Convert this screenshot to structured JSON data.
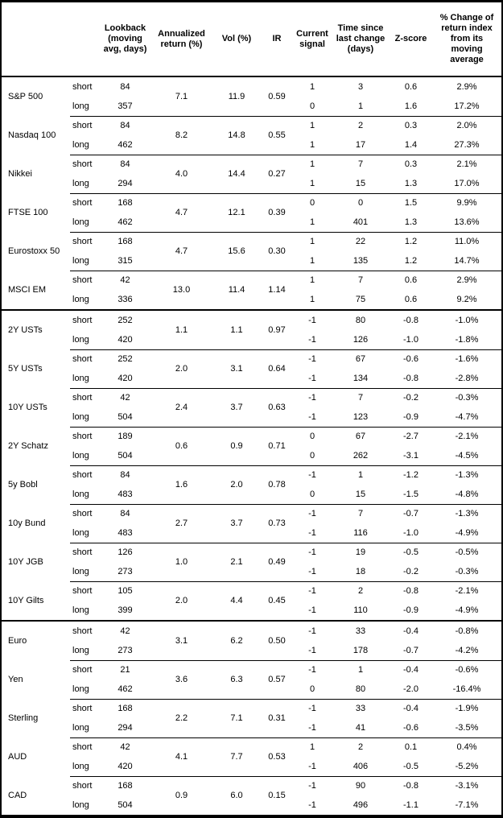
{
  "colors": {
    "border": "#000000",
    "text": "#000000",
    "background": "#ffffff"
  },
  "table": {
    "headers": {
      "name": "",
      "leg": "",
      "lookback": "Lookback (moving avg, days)",
      "annualized_return": "Annualized return (%)",
      "vol": "Vol (%)",
      "ir": "IR",
      "current_signal": "Current signal",
      "time_since": "Time since last change (days)",
      "z_score": "Z-score",
      "pct_change": "% Change of return index from its moving average"
    },
    "leg_labels": {
      "short": "short",
      "long": "long"
    },
    "sections": [
      {
        "instruments": [
          {
            "name": "S&P 500",
            "annualized_return": "7.1",
            "vol": "11.9",
            "ir": "0.59",
            "rows": [
              {
                "leg": "short",
                "lookback": "84",
                "signal": "1",
                "time": "3",
                "z": "0.6",
                "pct": "2.9%"
              },
              {
                "leg": "long",
                "lookback": "357",
                "signal": "0",
                "time": "1",
                "z": "1.6",
                "pct": "17.2%"
              }
            ]
          },
          {
            "name": "Nasdaq 100",
            "annualized_return": "8.2",
            "vol": "14.8",
            "ir": "0.55",
            "rows": [
              {
                "leg": "short",
                "lookback": "84",
                "signal": "1",
                "time": "2",
                "z": "0.3",
                "pct": "2.0%"
              },
              {
                "leg": "long",
                "lookback": "462",
                "signal": "1",
                "time": "17",
                "z": "1.4",
                "pct": "27.3%"
              }
            ]
          },
          {
            "name": "Nikkei",
            "annualized_return": "4.0",
            "vol": "14.4",
            "ir": "0.27",
            "rows": [
              {
                "leg": "short",
                "lookback": "84",
                "signal": "1",
                "time": "7",
                "z": "0.3",
                "pct": "2.1%"
              },
              {
                "leg": "long",
                "lookback": "294",
                "signal": "1",
                "time": "15",
                "z": "1.3",
                "pct": "17.0%"
              }
            ]
          },
          {
            "name": "FTSE 100",
            "annualized_return": "4.7",
            "vol": "12.1",
            "ir": "0.39",
            "rows": [
              {
                "leg": "short",
                "lookback": "168",
                "signal": "0",
                "time": "0",
                "z": "1.5",
                "pct": "9.9%"
              },
              {
                "leg": "long",
                "lookback": "462",
                "signal": "1",
                "time": "401",
                "z": "1.3",
                "pct": "13.6%"
              }
            ]
          },
          {
            "name": "Eurostoxx 50",
            "annualized_return": "4.7",
            "vol": "15.6",
            "ir": "0.30",
            "rows": [
              {
                "leg": "short",
                "lookback": "168",
                "signal": "1",
                "time": "22",
                "z": "1.2",
                "pct": "11.0%"
              },
              {
                "leg": "long",
                "lookback": "315",
                "signal": "1",
                "time": "135",
                "z": "1.2",
                "pct": "14.7%"
              }
            ]
          },
          {
            "name": "MSCI EM",
            "annualized_return": "13.0",
            "vol": "11.4",
            "ir": "1.14",
            "rows": [
              {
                "leg": "short",
                "lookback": "42",
                "signal": "1",
                "time": "7",
                "z": "0.6",
                "pct": "2.9%"
              },
              {
                "leg": "long",
                "lookback": "336",
                "signal": "1",
                "time": "75",
                "z": "0.6",
                "pct": "9.2%"
              }
            ]
          }
        ]
      },
      {
        "instruments": [
          {
            "name": "2Y USTs",
            "annualized_return": "1.1",
            "vol": "1.1",
            "ir": "0.97",
            "rows": [
              {
                "leg": "short",
                "lookback": "252",
                "signal": "-1",
                "time": "80",
                "z": "-0.8",
                "pct": "-1.0%"
              },
              {
                "leg": "long",
                "lookback": "420",
                "signal": "-1",
                "time": "126",
                "z": "-1.0",
                "pct": "-1.8%"
              }
            ]
          },
          {
            "name": "5Y USTs",
            "annualized_return": "2.0",
            "vol": "3.1",
            "ir": "0.64",
            "rows": [
              {
                "leg": "short",
                "lookback": "252",
                "signal": "-1",
                "time": "67",
                "z": "-0.6",
                "pct": "-1.6%"
              },
              {
                "leg": "long",
                "lookback": "420",
                "signal": "-1",
                "time": "134",
                "z": "-0.8",
                "pct": "-2.8%"
              }
            ]
          },
          {
            "name": "10Y USTs",
            "annualized_return": "2.4",
            "vol": "3.7",
            "ir": "0.63",
            "rows": [
              {
                "leg": "short",
                "lookback": "42",
                "signal": "-1",
                "time": "7",
                "z": "-0.2",
                "pct": "-0.3%"
              },
              {
                "leg": "long",
                "lookback": "504",
                "signal": "-1",
                "time": "123",
                "z": "-0.9",
                "pct": "-4.7%"
              }
            ]
          },
          {
            "name": "2Y Schatz",
            "annualized_return": "0.6",
            "vol": "0.9",
            "ir": "0.71",
            "rows": [
              {
                "leg": "short",
                "lookback": "189",
                "signal": "0",
                "time": "67",
                "z": "-2.7",
                "pct": "-2.1%"
              },
              {
                "leg": "long",
                "lookback": "504",
                "signal": "0",
                "time": "262",
                "z": "-3.1",
                "pct": "-4.5%"
              }
            ]
          },
          {
            "name": "5y Bobl",
            "annualized_return": "1.6",
            "vol": "2.0",
            "ir": "0.78",
            "rows": [
              {
                "leg": "short",
                "lookback": "84",
                "signal": "-1",
                "time": "1",
                "z": "-1.2",
                "pct": "-1.3%"
              },
              {
                "leg": "long",
                "lookback": "483",
                "signal": "0",
                "time": "15",
                "z": "-1.5",
                "pct": "-4.8%"
              }
            ]
          },
          {
            "name": "10y Bund",
            "annualized_return": "2.7",
            "vol": "3.7",
            "ir": "0.73",
            "rows": [
              {
                "leg": "short",
                "lookback": "84",
                "signal": "-1",
                "time": "7",
                "z": "-0.7",
                "pct": "-1.3%"
              },
              {
                "leg": "long",
                "lookback": "483",
                "signal": "-1",
                "time": "116",
                "z": "-1.0",
                "pct": "-4.9%"
              }
            ]
          },
          {
            "name": "10Y JGB",
            "annualized_return": "1.0",
            "vol": "2.1",
            "ir": "0.49",
            "rows": [
              {
                "leg": "short",
                "lookback": "126",
                "signal": "-1",
                "time": "19",
                "z": "-0.5",
                "pct": "-0.5%"
              },
              {
                "leg": "long",
                "lookback": "273",
                "signal": "-1",
                "time": "18",
                "z": "-0.2",
                "pct": "-0.3%"
              }
            ]
          },
          {
            "name": "10Y Gilts",
            "annualized_return": "2.0",
            "vol": "4.4",
            "ir": "0.45",
            "rows": [
              {
                "leg": "short",
                "lookback": "105",
                "signal": "-1",
                "time": "2",
                "z": "-0.8",
                "pct": "-2.1%"
              },
              {
                "leg": "long",
                "lookback": "399",
                "signal": "-1",
                "time": "110",
                "z": "-0.9",
                "pct": "-4.9%"
              }
            ]
          }
        ]
      },
      {
        "instruments": [
          {
            "name": "Euro",
            "annualized_return": "3.1",
            "vol": "6.2",
            "ir": "0.50",
            "rows": [
              {
                "leg": "short",
                "lookback": "42",
                "signal": "-1",
                "time": "33",
                "z": "-0.4",
                "pct": "-0.8%"
              },
              {
                "leg": "long",
                "lookback": "273",
                "signal": "-1",
                "time": "178",
                "z": "-0.7",
                "pct": "-4.2%"
              }
            ]
          },
          {
            "name": "Yen",
            "annualized_return": "3.6",
            "vol": "6.3",
            "ir": "0.57",
            "rows": [
              {
                "leg": "short",
                "lookback": "21",
                "signal": "-1",
                "time": "1",
                "z": "-0.4",
                "pct": "-0.6%"
              },
              {
                "leg": "long",
                "lookback": "462",
                "signal": "0",
                "time": "80",
                "z": "-2.0",
                "pct": "-16.4%"
              }
            ]
          },
          {
            "name": "Sterling",
            "annualized_return": "2.2",
            "vol": "7.1",
            "ir": "0.31",
            "rows": [
              {
                "leg": "short",
                "lookback": "168",
                "signal": "-1",
                "time": "33",
                "z": "-0.4",
                "pct": "-1.9%"
              },
              {
                "leg": "long",
                "lookback": "294",
                "signal": "-1",
                "time": "41",
                "z": "-0.6",
                "pct": "-3.5%"
              }
            ]
          },
          {
            "name": "AUD",
            "annualized_return": "4.1",
            "vol": "7.7",
            "ir": "0.53",
            "rows": [
              {
                "leg": "short",
                "lookback": "42",
                "signal": "1",
                "time": "2",
                "z": "0.1",
                "pct": "0.4%"
              },
              {
                "leg": "long",
                "lookback": "420",
                "signal": "-1",
                "time": "406",
                "z": "-0.5",
                "pct": "-5.2%"
              }
            ]
          },
          {
            "name": "CAD",
            "annualized_return": "0.9",
            "vol": "6.0",
            "ir": "0.15",
            "rows": [
              {
                "leg": "short",
                "lookback": "168",
                "signal": "-1",
                "time": "90",
                "z": "-0.8",
                "pct": "-3.1%"
              },
              {
                "leg": "long",
                "lookback": "504",
                "signal": "-1",
                "time": "496",
                "z": "-1.1",
                "pct": "-7.1%"
              }
            ]
          }
        ]
      }
    ]
  }
}
